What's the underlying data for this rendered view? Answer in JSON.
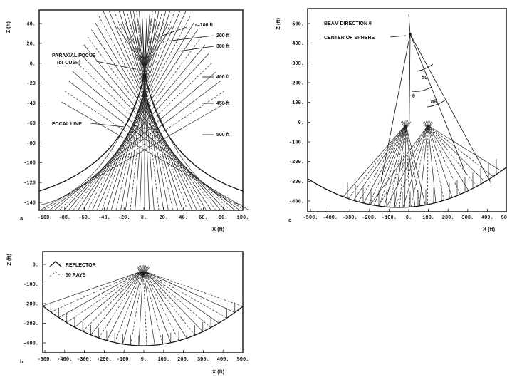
{
  "panel_a": {
    "label": "a",
    "ylabel": "Z (ft)",
    "xlabel": "X (ft)",
    "yticks": [
      "40.",
      "20.",
      "0.",
      "-20",
      "-40",
      "-60",
      "-80",
      "-100",
      "-120",
      "-140"
    ],
    "xticks": [
      "-100.",
      "-80.",
      "-60.",
      "-40.",
      "-20.",
      "0.",
      "20.",
      "40.",
      "60.",
      "80.",
      "100."
    ],
    "paraxial_focus": "PARAXIAL FOCUS",
    "paraxial_focus_sub": "(or CUSP)",
    "focal_line": "FOCAL LINE",
    "radii": [
      "r=100 ft",
      "200 ft",
      "300 ft",
      "400 ft",
      "450 ft",
      "500 ft"
    ]
  },
  "panel_b": {
    "label": "b",
    "ylabel": "Z (ft)",
    "xlabel": "X (ft)",
    "yticks": [
      "0.",
      "-100.",
      "-200.",
      "-300.",
      "-400."
    ],
    "xticks": [
      "-500.",
      "-400.",
      "-300.",
      "-200.",
      "-100.",
      "0.",
      "100.",
      "200.",
      "300.",
      "400.",
      "500."
    ],
    "legend": [
      "REFLECTOR",
      "50 RAYS"
    ]
  },
  "panel_c": {
    "label": "c",
    "ylabel": "Z (ft)",
    "xlabel": "X (ft)",
    "yticks": [
      "500.",
      "400.",
      "300.",
      "200.",
      "100.",
      "0.",
      "-100.",
      "-200.",
      "-300.",
      "-400."
    ],
    "xticks": [
      "-500.",
      "-400.",
      "-300.",
      "-200.",
      "-100.",
      "0.",
      "100.",
      "200.",
      "300.",
      "400.",
      "500."
    ],
    "beam_direction": "BEAM DIRECTION θ",
    "center_of_sphere": "CENTER OF SPHERE",
    "theta": "θ",
    "alpha0": "α0",
    "alpha_theta": "αθ"
  }
}
